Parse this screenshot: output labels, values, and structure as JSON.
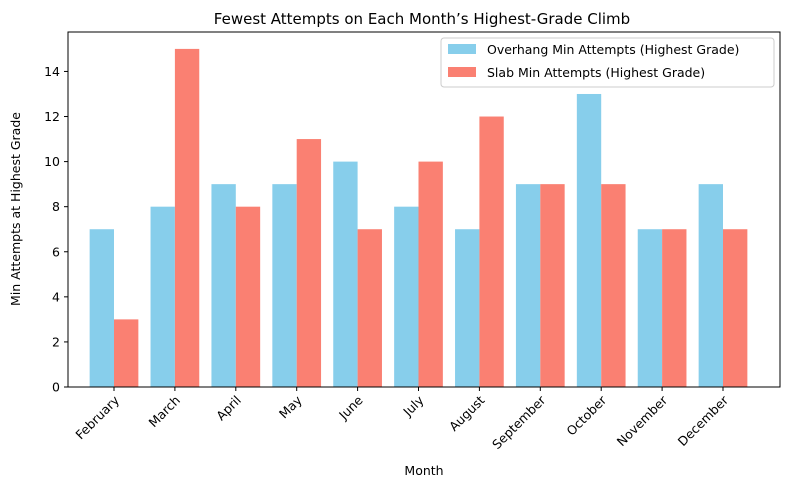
{
  "chart_data": {
    "type": "bar",
    "title": "Fewest Attempts on Each Month’s Highest-Grade Climb",
    "xlabel": "Month",
    "ylabel": "Min Attempts at Highest Grade",
    "categories": [
      "February",
      "March",
      "April",
      "May",
      "June",
      "July",
      "August",
      "September",
      "October",
      "November",
      "December"
    ],
    "series": [
      {
        "name": "Overhang Min Attempts (Highest Grade)",
        "color": "#87CEEB",
        "values": [
          7,
          8,
          9,
          9,
          10,
          8,
          7,
          9,
          13,
          7,
          9
        ]
      },
      {
        "name": "Slab Min Attempts (Highest Grade)",
        "color": "#FA8072",
        "values": [
          3,
          15,
          8,
          11,
          7,
          10,
          12,
          9,
          9,
          7,
          7
        ]
      }
    ],
    "ylim": [
      0,
      15.75
    ],
    "yticks": [
      0,
      2,
      4,
      6,
      8,
      10,
      12,
      14
    ],
    "grid": false,
    "legend": "top-right",
    "xtick_rotation": 45
  }
}
